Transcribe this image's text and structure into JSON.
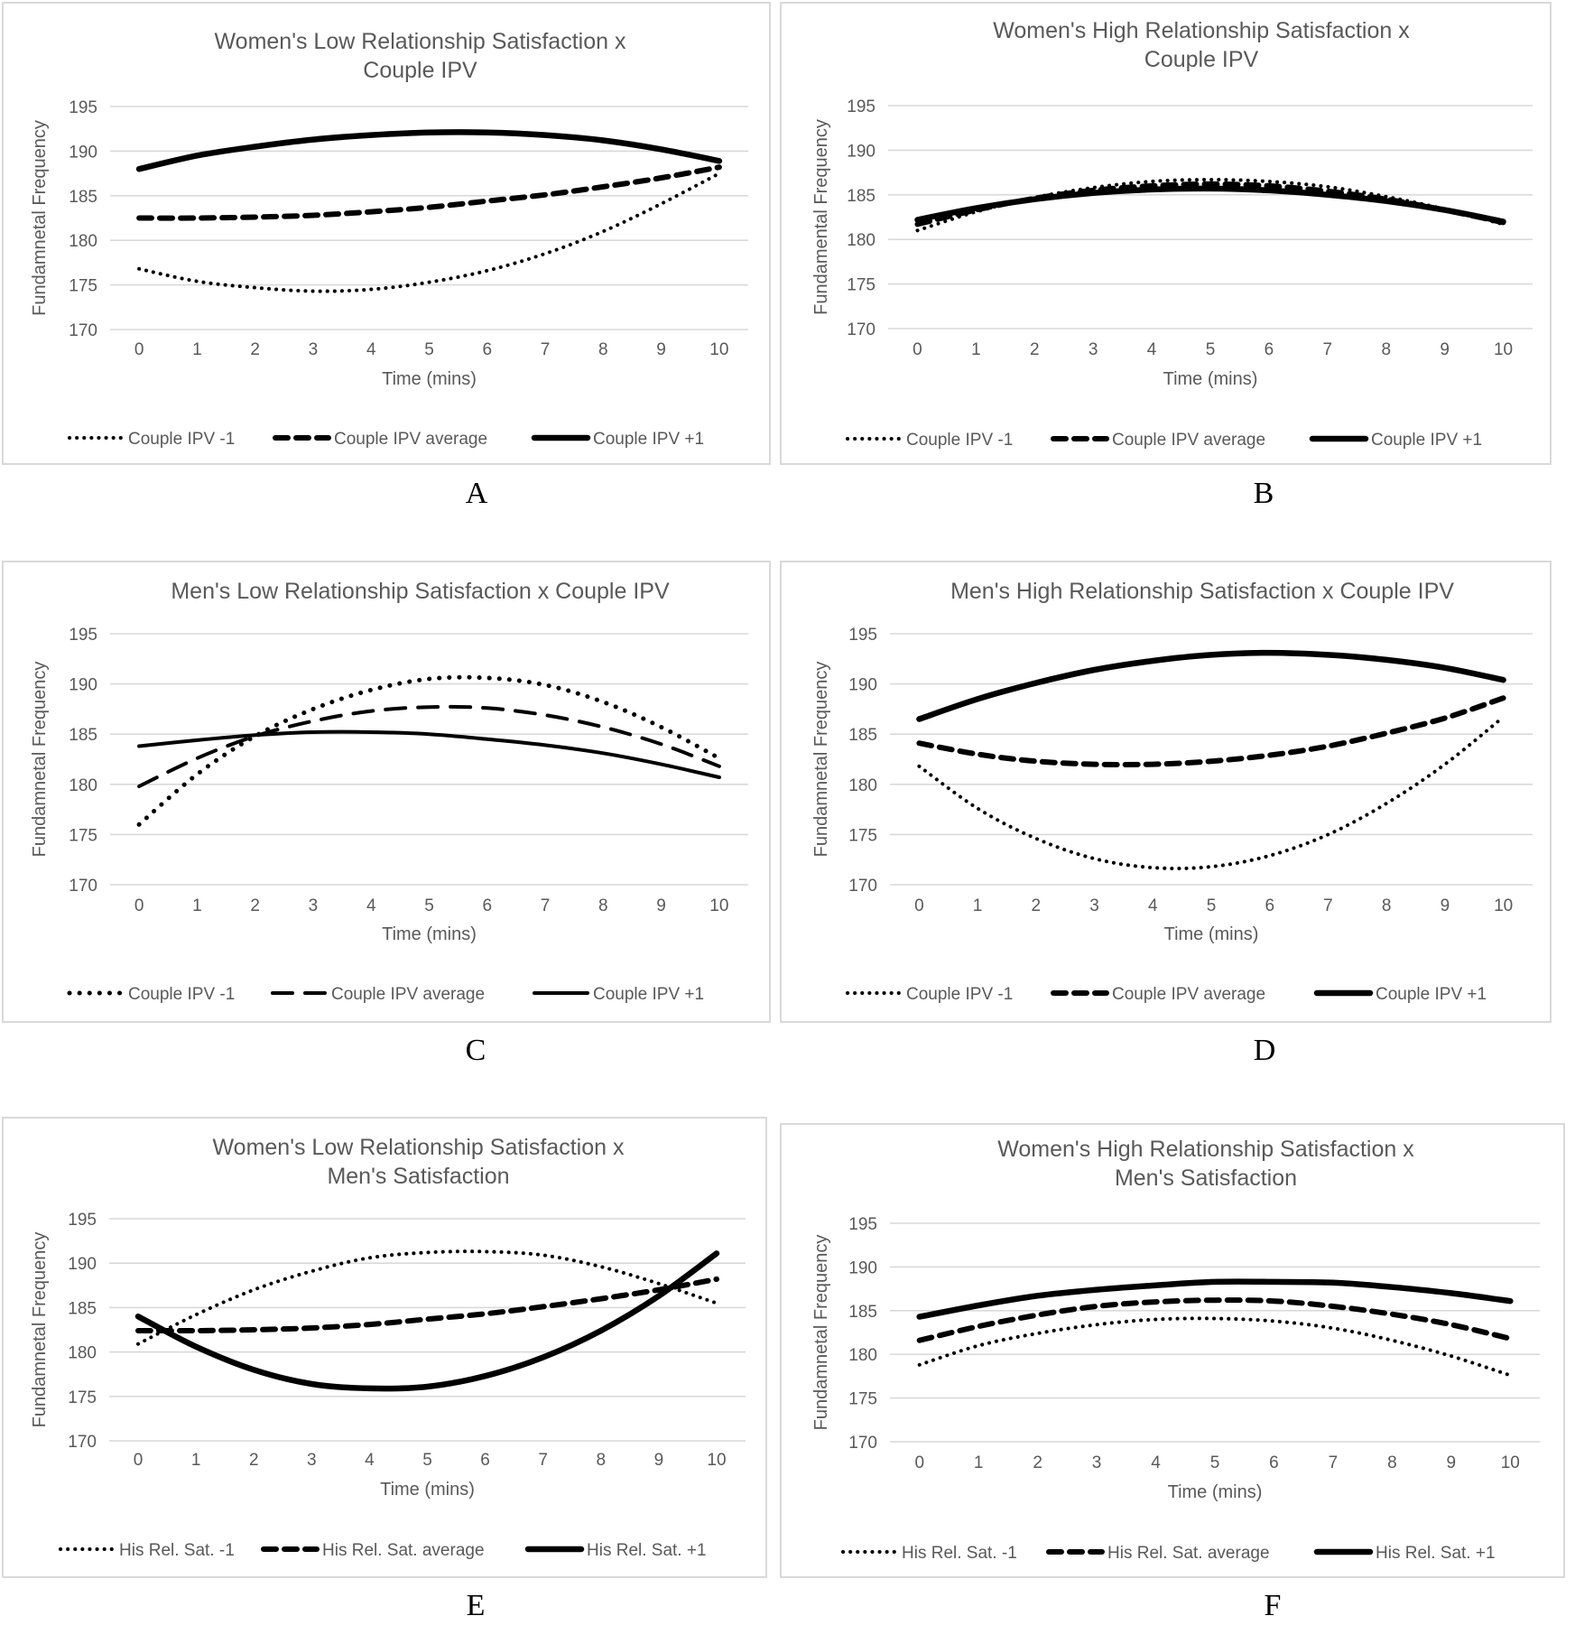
{
  "panels": [
    {
      "label": "A",
      "title_lines": [
        "Women's Low Relationship Satisfaction x",
        "Couple IPV"
      ],
      "ylabel": "Fundamnetal Frequency",
      "xlabel": "Time (mins)",
      "style": "thick",
      "legend": [
        "Couple IPV -1",
        "Couple IPV average",
        "Couple IPV +1"
      ]
    },
    {
      "label": "B",
      "title_lines": [
        "Women's High Relationship Satisfaction x",
        "Couple IPV"
      ],
      "ylabel": "Fundamental Frequency",
      "xlabel": "Time (mins)",
      "style": "thick",
      "legend": [
        "Couple IPV -1",
        "Couple IPV average",
        "Couple IPV +1"
      ]
    },
    {
      "label": "C",
      "title_lines": [
        "Men's Low Relationship Satisfaction x  Couple IPV"
      ],
      "ylabel": "Fundamnetal Frequency",
      "xlabel": "Time (mins)",
      "style": "thin",
      "legend": [
        "Couple IPV -1",
        "Couple IPV average",
        "Couple IPV +1"
      ]
    },
    {
      "label": "D",
      "title_lines": [
        "Men's High Relationship Satisfaction x Couple IPV"
      ],
      "ylabel": "Fundamnetal Frequency",
      "xlabel": "Time (mins)",
      "style": "thick",
      "legend": [
        "Couple IPV -1",
        "Couple IPV average",
        "Couple IPV +1"
      ]
    },
    {
      "label": "E",
      "title_lines": [
        "Women's Low Relationship Satisfaction x",
        "Men's Satisfaction"
      ],
      "ylabel": "Fundamnetal Frequency",
      "xlabel": "Time (mins)",
      "style": "thick",
      "legend": [
        "His Rel. Sat. -1",
        "His Rel. Sat. average",
        "His Rel. Sat. +1"
      ]
    },
    {
      "label": "F",
      "title_lines": [
        "Women's High Relationship Satisfaction x",
        "Men's Satisfaction"
      ],
      "ylabel": "Fundamnetal Frequency",
      "xlabel": "Time (mins)",
      "style": "thick",
      "legend": [
        "His Rel. Sat. -1",
        "His Rel. Sat. average",
        "His Rel. Sat. +1"
      ]
    }
  ],
  "chart_data": [
    {
      "type": "line",
      "title": "Women's Low Relationship Satisfaction x Couple IPV",
      "xlabel": "Time (mins)",
      "ylabel": "Fundamnetal Frequency",
      "x": [
        0,
        1,
        2,
        3,
        4,
        5,
        6,
        7,
        8,
        9,
        10
      ],
      "yticks": [
        170,
        175,
        180,
        185,
        190,
        195
      ],
      "ylim": [
        170,
        195
      ],
      "grid": true,
      "legend_position": "bottom",
      "series": [
        {
          "name": "Couple IPV -1",
          "dash": "dotted",
          "values": [
            176.8,
            175.4,
            174.7,
            174.3,
            174.5,
            175.3,
            176.6,
            178.5,
            181.0,
            184.1,
            187.5
          ]
        },
        {
          "name": "Couple IPV average",
          "dash": "dashed",
          "values": [
            182.5,
            182.5,
            182.6,
            182.8,
            183.2,
            183.7,
            184.4,
            185.1,
            186.0,
            187.0,
            188.2
          ]
        },
        {
          "name": "Couple IPV +1",
          "dash": "solid",
          "values": [
            188.0,
            189.5,
            190.5,
            191.3,
            191.8,
            192.1,
            192.1,
            191.8,
            191.2,
            190.2,
            188.9
          ]
        }
      ]
    },
    {
      "type": "line",
      "title": "Women's High Relationship Satisfaction x Couple IPV",
      "xlabel": "Time (mins)",
      "ylabel": "Fundamental Frequency",
      "x": [
        0,
        1,
        2,
        3,
        4,
        5,
        6,
        7,
        8,
        9,
        10
      ],
      "yticks": [
        170,
        175,
        180,
        185,
        190,
        195
      ],
      "ylim": [
        170,
        195
      ],
      "grid": true,
      "legend_position": "bottom",
      "series": [
        {
          "name": "Couple IPV -1",
          "dash": "dotted",
          "values": [
            181.0,
            183.1,
            184.7,
            185.8,
            186.5,
            186.7,
            186.5,
            185.9,
            184.8,
            183.4,
            181.7
          ]
        },
        {
          "name": "Couple IPV average",
          "dash": "dashed",
          "values": [
            181.7,
            183.3,
            184.6,
            185.5,
            186.0,
            186.2,
            186.0,
            185.4,
            184.5,
            183.3,
            181.9
          ]
        },
        {
          "name": "Couple IPV +1",
          "dash": "solid",
          "values": [
            182.2,
            183.5,
            184.5,
            185.2,
            185.6,
            185.7,
            185.5,
            185.0,
            184.3,
            183.3,
            182.0
          ]
        }
      ]
    },
    {
      "type": "line",
      "title": "Men's Low Relationship Satisfaction x  Couple IPV",
      "xlabel": "Time (mins)",
      "ylabel": "Fundamnetal Frequency",
      "x": [
        0,
        1,
        2,
        3,
        4,
        5,
        6,
        7,
        8,
        9,
        10
      ],
      "yticks": [
        170,
        175,
        180,
        185,
        190,
        195
      ],
      "ylim": [
        170,
        195
      ],
      "grid": true,
      "legend_position": "bottom",
      "series": [
        {
          "name": "Couple IPV -1",
          "dash": "dotted",
          "values": [
            176.0,
            181.0,
            184.8,
            187.5,
            189.4,
            190.5,
            190.6,
            189.9,
            188.2,
            185.7,
            182.6
          ]
        },
        {
          "name": "Couple IPV average",
          "dash": "dashed",
          "values": [
            179.8,
            182.6,
            184.8,
            186.3,
            187.3,
            187.7,
            187.6,
            186.9,
            185.7,
            184.0,
            181.8
          ]
        },
        {
          "name": "Couple IPV +1",
          "dash": "solid",
          "values": [
            183.8,
            184.4,
            184.9,
            185.2,
            185.2,
            185.0,
            184.5,
            183.9,
            183.1,
            182.0,
            180.7
          ]
        }
      ]
    },
    {
      "type": "line",
      "title": "Men's High Relationship Satisfaction x Couple IPV",
      "xlabel": "Time (mins)",
      "ylabel": "Fundamnetal Frequency",
      "x": [
        0,
        1,
        2,
        3,
        4,
        5,
        6,
        7,
        8,
        9,
        10
      ],
      "yticks": [
        170,
        175,
        180,
        185,
        190,
        195
      ],
      "ylim": [
        170,
        195
      ],
      "grid": true,
      "legend_position": "bottom",
      "series": [
        {
          "name": "Couple IPV -1",
          "dash": "dotted",
          "values": [
            181.8,
            177.6,
            174.6,
            172.6,
            171.7,
            171.8,
            172.9,
            175.0,
            178.1,
            182.0,
            186.7
          ]
        },
        {
          "name": "Couple IPV average",
          "dash": "dashed",
          "values": [
            184.1,
            183.0,
            182.3,
            182.0,
            182.0,
            182.3,
            182.9,
            183.8,
            185.1,
            186.6,
            188.6
          ]
        },
        {
          "name": "Couple IPV +1",
          "dash": "solid",
          "values": [
            186.5,
            188.5,
            190.1,
            191.4,
            192.3,
            192.9,
            193.1,
            192.9,
            192.4,
            191.6,
            190.4
          ]
        }
      ]
    },
    {
      "type": "line",
      "title": "Women's Low Relationship Satisfaction x Men's Satisfaction",
      "xlabel": "Time (mins)",
      "ylabel": "Fundamnetal Frequency",
      "x": [
        0,
        1,
        2,
        3,
        4,
        5,
        6,
        7,
        8,
        9,
        10
      ],
      "yticks": [
        170,
        175,
        180,
        185,
        190,
        195
      ],
      "ylim": [
        170,
        195
      ],
      "grid": true,
      "legend_position": "bottom",
      "series": [
        {
          "name": "His Rel. Sat. -1",
          "dash": "dotted",
          "values": [
            180.9,
            184.2,
            187.0,
            189.1,
            190.6,
            191.2,
            191.3,
            190.9,
            189.6,
            187.7,
            185.5
          ]
        },
        {
          "name": "His Rel. Sat. average",
          "dash": "dashed",
          "values": [
            182.4,
            182.4,
            182.5,
            182.7,
            183.1,
            183.7,
            184.3,
            185.1,
            186.0,
            187.0,
            188.2
          ]
        },
        {
          "name": "His Rel. Sat. +1",
          "dash": "solid",
          "values": [
            184.0,
            180.6,
            178.0,
            176.4,
            175.9,
            176.1,
            177.3,
            179.4,
            182.4,
            186.3,
            191.1
          ]
        }
      ]
    },
    {
      "type": "line",
      "title": "Women's High Relationship Satisfaction x Men's Satisfaction",
      "xlabel": "Time (mins)",
      "ylabel": "Fundamnetal Frequency",
      "x": [
        0,
        1,
        2,
        3,
        4,
        5,
        6,
        7,
        8,
        9,
        10
      ],
      "yticks": [
        170,
        175,
        180,
        185,
        190,
        195
      ],
      "ylim": [
        170,
        195
      ],
      "grid": true,
      "legend_position": "bottom",
      "series": [
        {
          "name": "His Rel. Sat. -1",
          "dash": "dotted",
          "values": [
            178.8,
            181.0,
            182.4,
            183.4,
            184.0,
            184.1,
            183.8,
            183.0,
            181.6,
            179.8,
            177.6
          ]
        },
        {
          "name": "His Rel. Sat. average",
          "dash": "dashed",
          "values": [
            181.6,
            183.2,
            184.5,
            185.5,
            186.0,
            186.2,
            186.1,
            185.5,
            184.6,
            183.4,
            181.8
          ]
        },
        {
          "name": "His Rel. Sat. +1",
          "dash": "solid",
          "values": [
            184.3,
            185.6,
            186.7,
            187.4,
            187.9,
            188.3,
            188.3,
            188.2,
            187.7,
            187.0,
            186.1
          ]
        }
      ]
    }
  ]
}
